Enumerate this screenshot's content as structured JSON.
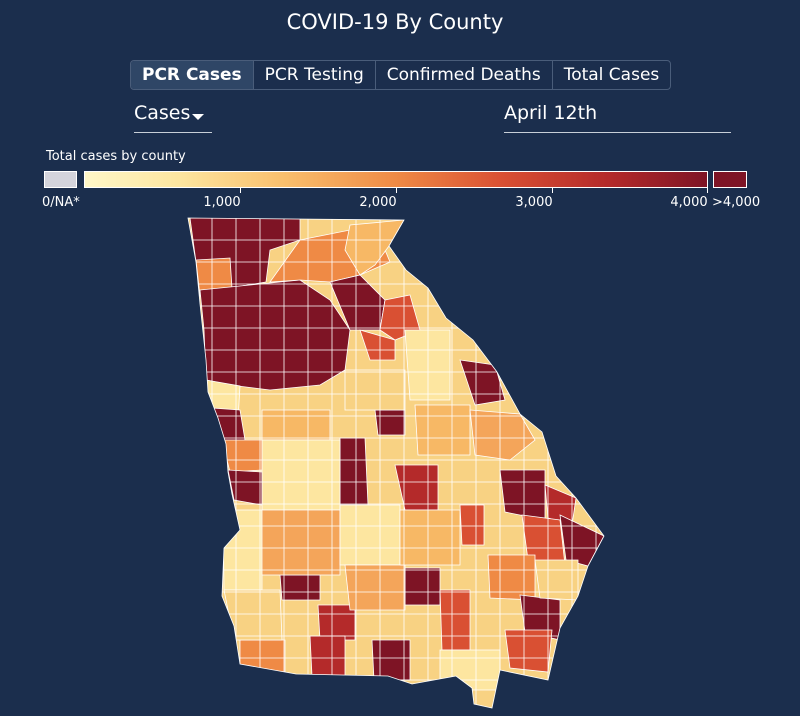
{
  "title": "COVID-19 By County",
  "tabs": [
    {
      "label": "PCR Cases",
      "active": true
    },
    {
      "label": "PCR Testing",
      "active": false
    },
    {
      "label": "Confirmed Deaths",
      "active": false
    },
    {
      "label": "Total Cases",
      "active": false
    }
  ],
  "metric_dropdown": {
    "value": "Cases"
  },
  "date_field": {
    "value": "April 12th"
  },
  "legend": {
    "title": "Total cases by county",
    "na_label": "0/NA*",
    "na_color": "#d4d4dc",
    "ticks": [
      "1,000",
      "2,000",
      "3,000",
      "4,000"
    ],
    "max_label": ">4,000",
    "max_color": "#7e1425",
    "scale_colors": [
      "#fff7c8",
      "#fde6a0",
      "#f9bf6d",
      "#ef8a45",
      "#d95033",
      "#b42a2a",
      "#7e1425"
    ]
  },
  "map": {
    "region": "Georgia",
    "outline_color": "#ffffff"
  }
}
